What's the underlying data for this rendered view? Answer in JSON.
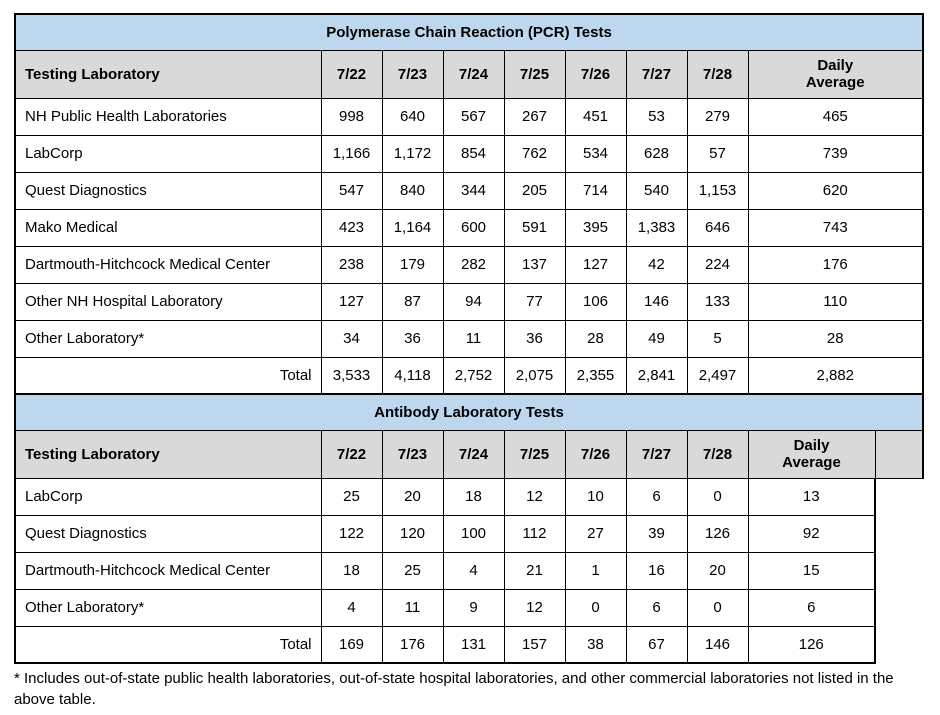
{
  "colors": {
    "table_title_bg": "#bdd7ee",
    "table_header_bg": "#d9d9d9",
    "border": "#000000"
  },
  "footnote": "* Includes out-of-state public health laboratories, out-of-state hospital laboratories, and other commercial laboratories not listed in the above table.",
  "tables": [
    {
      "id": "pcr",
      "title": "Polymerase Chain Reaction (PCR) Tests",
      "columns": {
        "laboratory": "Testing Laboratory",
        "dates": [
          "7/22",
          "7/23",
          "7/24",
          "7/25",
          "7/26",
          "7/27",
          "7/28"
        ],
        "average": "Daily\nAverage"
      },
      "rows": [
        {
          "label": "NH Public Health Laboratories",
          "values": [
            "998",
            "640",
            "567",
            "267",
            "451",
            "53",
            "279"
          ],
          "average": "465"
        },
        {
          "label": "LabCorp",
          "values": [
            "1,166",
            "1,172",
            "854",
            "762",
            "534",
            "628",
            "57"
          ],
          "average": "739"
        },
        {
          "label": "Quest Diagnostics",
          "values": [
            "547",
            "840",
            "344",
            "205",
            "714",
            "540",
            "1,153"
          ],
          "average": "620"
        },
        {
          "label": "Mako Medical",
          "values": [
            "423",
            "1,164",
            "600",
            "591",
            "395",
            "1,383",
            "646"
          ],
          "average": "743"
        },
        {
          "label": "Dartmouth-Hitchcock Medical Center",
          "values": [
            "238",
            "179",
            "282",
            "137",
            "127",
            "42",
            "224"
          ],
          "average": "176"
        },
        {
          "label": "Other NH Hospital Laboratory",
          "values": [
            "127",
            "87",
            "94",
            "77",
            "106",
            "146",
            "133"
          ],
          "average": "110"
        },
        {
          "label": "Other Laboratory*",
          "values": [
            "34",
            "36",
            "11",
            "36",
            "28",
            "49",
            "5"
          ],
          "average": "28"
        }
      ],
      "total": {
        "label": "Total",
        "values": [
          "3,533",
          "4,118",
          "2,752",
          "2,075",
          "2,355",
          "2,841",
          "2,497"
        ],
        "average": "2,882"
      }
    },
    {
      "id": "antibody",
      "title": "Antibody Laboratory Tests",
      "columns": {
        "laboratory": "Testing Laboratory",
        "dates": [
          "7/22",
          "7/23",
          "7/24",
          "7/25",
          "7/26",
          "7/27",
          "7/28"
        ],
        "average": "Daily\nAverage"
      },
      "rows": [
        {
          "label": "LabCorp",
          "values": [
            "25",
            "20",
            "18",
            "12",
            "10",
            "6",
            "0"
          ],
          "average": "13"
        },
        {
          "label": "Quest Diagnostics",
          "values": [
            "122",
            "120",
            "100",
            "112",
            "27",
            "39",
            "126"
          ],
          "average": "92"
        },
        {
          "label": "Dartmouth-Hitchcock Medical Center",
          "values": [
            "18",
            "25",
            "4",
            "21",
            "1",
            "16",
            "20"
          ],
          "average": "15"
        },
        {
          "label": "Other Laboratory*",
          "values": [
            "4",
            "11",
            "9",
            "12",
            "0",
            "6",
            "0"
          ],
          "average": "6"
        }
      ],
      "total": {
        "label": "Total",
        "values": [
          "169",
          "176",
          "131",
          "157",
          "38",
          "67",
          "146"
        ],
        "average": "126"
      }
    }
  ]
}
